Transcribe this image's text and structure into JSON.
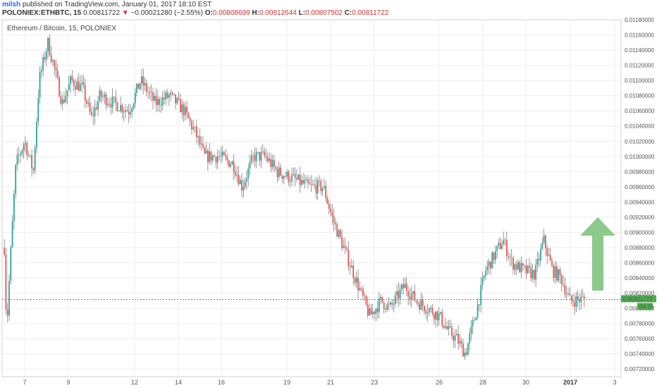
{
  "header": {
    "author": "milsh",
    "published": "published on TradingView.com, January 01, 2017 18:10 EST",
    "symbol": "POLONIEX:ETHBTC, 15",
    "last": "0.00811722",
    "change_arrow": "▼",
    "change": "−0.00021280 (−2.55%)",
    "o_label": "O:",
    "o_value": "0.00808699",
    "h_label": "H:",
    "h_value": "0.00812644",
    "l_label": "L:",
    "l_value": "0.00807502",
    "c_label": "C:",
    "c_value": "0.00811722"
  },
  "pane_title": "Ethereum / Bitcoin, 15, POLONIEX",
  "price_tag": {
    "value": "0.00811722",
    "countdown": "04:26",
    "color": "#4caf50"
  },
  "colors": {
    "up": "#26a69a",
    "down": "#ef5350",
    "arrow": "#8cc98a",
    "grid": "#eeeeee",
    "price_line": "#26a69a"
  },
  "chart_data": {
    "type": "candlestick",
    "title": "Ethereum / Bitcoin, 15, POLONIEX",
    "ylim": [
      0.0071,
      0.0118
    ],
    "yticks": [
      "0.01180000",
      "0.01160000",
      "0.01140000",
      "0.01120000",
      "0.01100000",
      "0.01080000",
      "0.01060000",
      "0.01040000",
      "0.01020000",
      "0.01000000",
      "0.00980000",
      "0.00960000",
      "0.00940000",
      "0.00920000",
      "0.00900000",
      "0.00880000",
      "0.00860000",
      "0.00840000",
      "0.00820000",
      "0.00800000",
      "0.00780000",
      "0.00760000",
      "0.00740000",
      "0.00720000"
    ],
    "xticks": [
      "7",
      "9",
      "12",
      "14",
      "16",
      "19",
      "21",
      "23",
      "26",
      "28",
      "30",
      "2017",
      "3"
    ],
    "last_price": 0.00811722,
    "annotation": "green up arrow",
    "path": [
      [
        0.0,
        0.0088
      ],
      [
        0.004,
        0.0077
      ],
      [
        0.01,
        0.0086
      ],
      [
        0.02,
        0.0099
      ],
      [
        0.035,
        0.0102
      ],
      [
        0.05,
        0.0098
      ],
      [
        0.06,
        0.011
      ],
      [
        0.075,
        0.0115
      ],
      [
        0.085,
        0.0112
      ],
      [
        0.1,
        0.0107
      ],
      [
        0.115,
        0.011
      ],
      [
        0.135,
        0.0109
      ],
      [
        0.15,
        0.0105
      ],
      [
        0.165,
        0.0108
      ],
      [
        0.19,
        0.0107
      ],
      [
        0.215,
        0.0106
      ],
      [
        0.235,
        0.011
      ],
      [
        0.26,
        0.0107
      ],
      [
        0.285,
        0.0108
      ],
      [
        0.31,
        0.0106
      ],
      [
        0.33,
        0.0103
      ],
      [
        0.345,
        0.01
      ],
      [
        0.37,
        0.01
      ],
      [
        0.395,
        0.0099
      ],
      [
        0.41,
        0.0096
      ],
      [
        0.43,
        0.01
      ],
      [
        0.45,
        0.01
      ],
      [
        0.47,
        0.0098
      ],
      [
        0.5,
        0.0097
      ],
      [
        0.525,
        0.0096
      ],
      [
        0.55,
        0.0096
      ],
      [
        0.565,
        0.0092
      ],
      [
        0.585,
        0.0088
      ],
      [
        0.6,
        0.0085
      ],
      [
        0.615,
        0.0082
      ],
      [
        0.63,
        0.0079
      ],
      [
        0.65,
        0.0081
      ],
      [
        0.665,
        0.008
      ],
      [
        0.69,
        0.0083
      ],
      [
        0.71,
        0.0081
      ],
      [
        0.73,
        0.008
      ],
      [
        0.75,
        0.0079
      ],
      [
        0.765,
        0.0077
      ],
      [
        0.78,
        0.0076
      ],
      [
        0.795,
        0.0074
      ],
      [
        0.805,
        0.0077
      ],
      [
        0.815,
        0.008
      ],
      [
        0.83,
        0.0085
      ],
      [
        0.845,
        0.0087
      ],
      [
        0.86,
        0.0089
      ],
      [
        0.875,
        0.0086
      ],
      [
        0.895,
        0.0085
      ],
      [
        0.915,
        0.00845
      ],
      [
        0.93,
        0.0089
      ],
      [
        0.945,
        0.0085
      ],
      [
        0.96,
        0.0084
      ],
      [
        0.975,
        0.0081
      ],
      [
        1.0,
        0.00812
      ]
    ]
  }
}
